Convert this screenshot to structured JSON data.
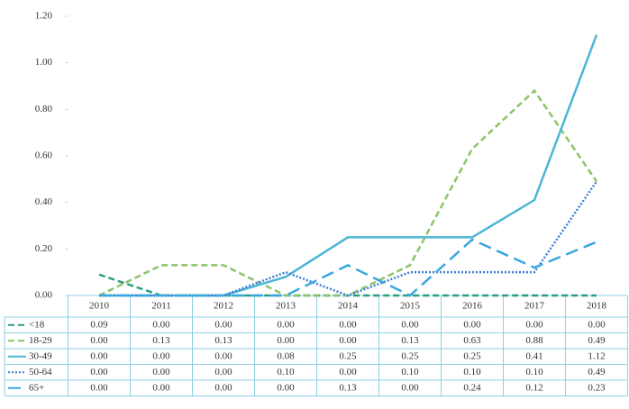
{
  "chart_data": {
    "type": "line",
    "categories": [
      "2010",
      "2011",
      "2012",
      "2013",
      "2014",
      "2015",
      "2016",
      "2017",
      "2018"
    ],
    "ylim": [
      0,
      1.2
    ],
    "yticks": [
      {
        "value": 0,
        "label": "0.00"
      },
      {
        "value": 0.2,
        "label": "0.20"
      },
      {
        "value": 0.4,
        "label": "0.40"
      },
      {
        "value": 0.6,
        "label": "0.60"
      },
      {
        "value": 0.8,
        "label": "0.80"
      },
      {
        "value": 1.0,
        "label": "1.00"
      },
      {
        "value": 1.2,
        "label": "1.20"
      }
    ],
    "series": [
      {
        "name": "<18",
        "color": "#2a9d7f",
        "style": "dashed",
        "values": [
          0.09,
          0,
          0,
          0,
          0,
          0,
          0,
          0,
          0
        ],
        "value_labels": [
          "0.09",
          "0.00",
          "0.00",
          "0.00",
          "0.00",
          "0.00",
          "0.00",
          "0.00",
          "0.00"
        ]
      },
      {
        "name": "18-29",
        "color": "#8cc46a",
        "style": "dashed",
        "values": [
          0,
          0.13,
          0.13,
          0,
          0,
          0.13,
          0.63,
          0.88,
          0.49
        ],
        "value_labels": [
          "0.00",
          "0.13",
          "0.13",
          "0.00",
          "0.00",
          "0.13",
          "0.63",
          "0.88",
          "0.49"
        ]
      },
      {
        "name": "30-49",
        "color": "#4cb6d6",
        "style": "solid",
        "values": [
          0,
          0,
          0,
          0.08,
          0.25,
          0.25,
          0.25,
          0.41,
          1.12
        ],
        "value_labels": [
          "0.00",
          "0.00",
          "0.00",
          "0.08",
          "0.25",
          "0.25",
          "0.25",
          "0.41",
          "1.12"
        ]
      },
      {
        "name": "50-64",
        "color": "#3d7fd4",
        "style": "dotted",
        "values": [
          0,
          0,
          0,
          0.1,
          0,
          0.1,
          0.1,
          0.1,
          0.49
        ],
        "value_labels": [
          "0.00",
          "0.00",
          "0.00",
          "0.10",
          "0.00",
          "0.10",
          "0.10",
          "0.10",
          "0.49"
        ]
      },
      {
        "name": "65+",
        "color": "#3aa6e0",
        "style": "long-dashed",
        "values": [
          0,
          0,
          0,
          0,
          0.13,
          0,
          0.24,
          0.12,
          0.23
        ],
        "value_labels": [
          "0.00",
          "0.00",
          "0.00",
          "0.00",
          "0.13",
          "0.00",
          "0.24",
          "0.12",
          "0.23"
        ]
      }
    ]
  }
}
